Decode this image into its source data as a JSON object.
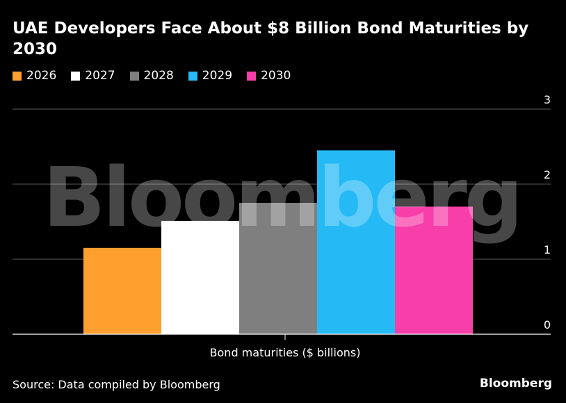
{
  "title": "UAE Developers Face About $8 Billion Bond Maturities by 2030",
  "source": "Source: Data compiled by Bloomberg",
  "brand": "Bloomberg",
  "watermark": "Bloomberg",
  "legend": [
    {
      "label": "2026",
      "color": "#ff9f2e"
    },
    {
      "label": "2027",
      "color": "#ffffff"
    },
    {
      "label": "2028",
      "color": "#7f7f7f"
    },
    {
      "label": "2029",
      "color": "#25b9f5"
    },
    {
      "label": "2030",
      "color": "#f83ea8"
    }
  ],
  "chart_data": {
    "type": "bar",
    "title": "UAE Developers Face About $8 Billion Bond Maturities by 2030",
    "categories": [
      "Bond maturities ($ billions)"
    ],
    "series": [
      {
        "name": "2026",
        "values": [
          1.15
        ],
        "color": "#ff9f2e"
      },
      {
        "name": "2027",
        "values": [
          1.51
        ],
        "color": "#ffffff"
      },
      {
        "name": "2028",
        "values": [
          1.75
        ],
        "color": "#7f7f7f"
      },
      {
        "name": "2029",
        "values": [
          2.45
        ],
        "color": "#25b9f5"
      },
      {
        "name": "2030",
        "values": [
          1.7
        ],
        "color": "#f83ea8"
      }
    ],
    "xlabel": "Bond maturities ($ billions)",
    "ylabel": "",
    "ylim": [
      0,
      3
    ],
    "yticks": [
      "0",
      "1",
      "2",
      "3"
    ],
    "grid": true,
    "legend_position": "top-left"
  }
}
